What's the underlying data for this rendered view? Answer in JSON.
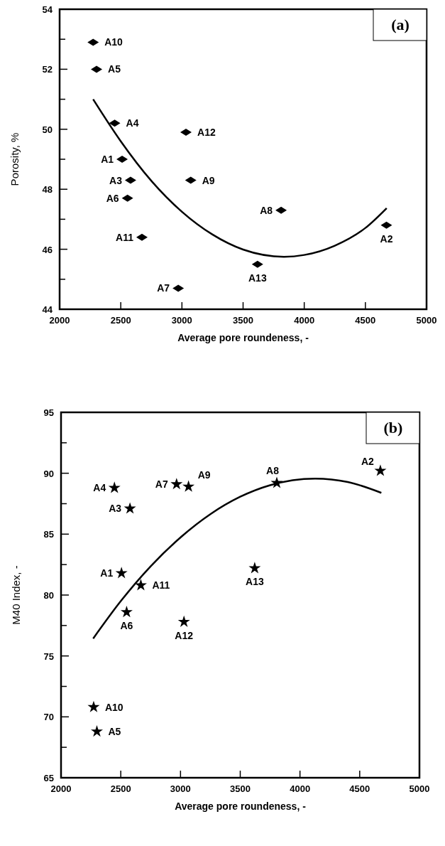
{
  "chart_data": [
    {
      "type": "scatter",
      "title": "(a)",
      "xlabel": "Average pore roundeness, -",
      "ylabel": "Porosity, %",
      "xlim": [
        2000,
        5000
      ],
      "xticks": [
        2000,
        2500,
        3000,
        3500,
        4000,
        4500,
        5000
      ],
      "ylim": [
        44,
        54
      ],
      "yticks": [
        44,
        {
          "value": 45,
          "label": null
        },
        46,
        {
          "value": 47,
          "label": null
        },
        48,
        {
          "value": 49,
          "label": null
        },
        50,
        {
          "value": 51,
          "label": null
        },
        52,
        {
          "value": 53,
          "label": null
        },
        54
      ],
      "grid": false,
      "series": [
        {
          "color": "#000000",
          "marker": "diamond",
          "x": [
            2274,
            2302,
            2450,
            3033,
            2511,
            2580,
            3072,
            2555,
            3811,
            4672,
            2673,
            3618,
            2970
          ],
          "values": [
            52.9,
            52.0,
            50.2,
            49.9,
            49.0,
            48.3,
            48.3,
            47.7,
            47.3,
            46.8,
            46.4,
            45.5,
            44.7
          ]
        },
        {
          "type": "line",
          "color": "#000000",
          "marker": "none",
          "line_style": "solid",
          "x": [
            2274,
            2500,
            2750,
            3000,
            3250,
            3500,
            3834,
            4000,
            4250,
            4500,
            4674
          ],
          "values": [
            51.0,
            49.6,
            48.28,
            47.25,
            46.49,
            45.99,
            45.75,
            45.81,
            46.12,
            46.71,
            47.37
          ]
        }
      ],
      "annotations": [
        {
          "text": "A10",
          "x": 2274,
          "y": 52.9
        },
        {
          "text": "A5",
          "x": 2302,
          "y": 52.0
        },
        {
          "text": "A4",
          "x": 2450,
          "y": 50.2
        },
        {
          "text": "A12",
          "x": 3033,
          "y": 49.9
        },
        {
          "text": "A1",
          "x": 2511,
          "y": 49.0
        },
        {
          "text": "A3",
          "x": 2580,
          "y": 48.3
        },
        {
          "text": "A9",
          "x": 3072,
          "y": 48.3
        },
        {
          "text": "A6",
          "x": 2555,
          "y": 47.7
        },
        {
          "text": "A8",
          "x": 3811,
          "y": 47.3
        },
        {
          "text": "A2",
          "x": 4672,
          "y": 46.8
        },
        {
          "text": "A11",
          "x": 2673,
          "y": 46.4
        },
        {
          "text": "A13",
          "x": 3618,
          "y": 45.5
        },
        {
          "text": "A7",
          "x": 2970,
          "y": 44.7
        }
      ]
    },
    {
      "type": "scatter",
      "title": "(b)",
      "xlabel": "Average pore roundeness, -",
      "ylabel": "M40 Index, -",
      "xlim": [
        2000,
        5000
      ],
      "xticks": [
        2000,
        2500,
        3000,
        3500,
        4000,
        4500,
        5000
      ],
      "ylim": [
        65,
        95
      ],
      "yticks": [
        65,
        {
          "value": 67.5,
          "label": null
        },
        70,
        {
          "value": 72.5,
          "label": null
        },
        75,
        {
          "value": 77.5,
          "label": null
        },
        80,
        {
          "value": 82.5,
          "label": null
        },
        85,
        {
          "value": 87.5,
          "label": null
        },
        90,
        {
          "value": 92.5,
          "label": null
        },
        95
      ],
      "grid": false,
      "series": [
        {
          "color": "#000000",
          "marker": "star",
          "x": [
            4673,
            3806,
            2967,
            3067,
            2447,
            2577,
            3621,
            2506,
            2668,
            2549,
            3029,
            2273,
            2300
          ],
          "values": [
            90.2,
            89.2,
            89.1,
            88.9,
            88.8,
            87.1,
            82.2,
            81.8,
            80.8,
            78.6,
            77.8,
            70.8,
            68.8
          ]
        },
        {
          "type": "line",
          "color": "#000000",
          "marker": "none",
          "line_style": "solid",
          "x": [
            2269,
            2500,
            2750,
            3000,
            3250,
            3500,
            3750,
            4127,
            4400,
            4681
          ],
          "values": [
            76.43,
            79.5,
            82.36,
            84.73,
            86.64,
            88.07,
            89.02,
            89.56,
            89.28,
            88.39
          ]
        }
      ],
      "annotations": [
        {
          "text": "A2",
          "x": 4673,
          "y": 90.2
        },
        {
          "text": "A8",
          "x": 3806,
          "y": 89.2
        },
        {
          "text": "A7",
          "x": 2967,
          "y": 89.1
        },
        {
          "text": "A9",
          "x": 3067,
          "y": 88.9
        },
        {
          "text": "A4",
          "x": 2447,
          "y": 88.8
        },
        {
          "text": "A3",
          "x": 2577,
          "y": 87.1
        },
        {
          "text": "A13",
          "x": 3621,
          "y": 82.2
        },
        {
          "text": "A1",
          "x": 2506,
          "y": 81.8
        },
        {
          "text": "A11",
          "x": 2668,
          "y": 80.8
        },
        {
          "text": "A6",
          "x": 2549,
          "y": 78.6
        },
        {
          "text": "A12",
          "x": 3029,
          "y": 77.8
        },
        {
          "text": "A10",
          "x": 2273,
          "y": 70.8
        },
        {
          "text": "A5",
          "x": 2300,
          "y": 68.8
        }
      ]
    }
  ]
}
